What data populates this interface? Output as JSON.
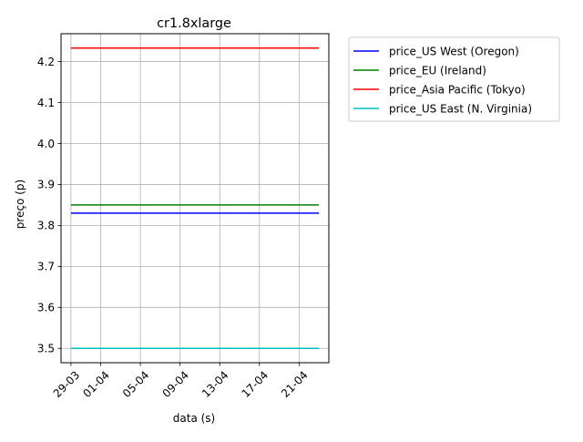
{
  "chart_data": {
    "type": "line",
    "title": "cr1.8xlarge",
    "xlabel": "data (s)",
    "ylabel": "preço (p)",
    "x_dates": [
      "2016-03-29",
      "2016-03-30",
      "2016-03-31",
      "2016-04-01",
      "2016-04-02",
      "2016-04-03",
      "2016-04-04",
      "2016-04-05",
      "2016-04-06",
      "2016-04-07",
      "2016-04-08",
      "2016-04-09",
      "2016-04-10",
      "2016-04-11",
      "2016-04-12",
      "2016-04-13",
      "2016-04-14",
      "2016-04-15",
      "2016-04-16",
      "2016-04-17",
      "2016-04-18",
      "2016-04-19",
      "2016-04-20",
      "2016-04-21",
      "2016-04-22",
      "2016-04-23"
    ],
    "xlim": [
      "2016-03-28",
      "2016-04-24"
    ],
    "x_ticks": [
      {
        "date": "2016-03-29",
        "label": "29-03"
      },
      {
        "date": "2016-04-01",
        "label": "01-04"
      },
      {
        "date": "2016-04-05",
        "label": "05-04"
      },
      {
        "date": "2016-04-09",
        "label": "09-04"
      },
      {
        "date": "2016-04-13",
        "label": "13-04"
      },
      {
        "date": "2016-04-17",
        "label": "17-04"
      },
      {
        "date": "2016-04-21",
        "label": "21-04"
      }
    ],
    "ylim": [
      3.465,
      4.268
    ],
    "y_ticks": [
      3.5,
      3.6,
      3.7,
      3.8,
      3.9,
      4.0,
      4.1,
      4.2
    ],
    "y_tick_labels": [
      "3.5",
      "3.6",
      "3.7",
      "3.8",
      "3.9",
      "4.0",
      "4.1",
      "4.2"
    ],
    "grid": true,
    "legend_position": "outside right, top",
    "series": [
      {
        "name": "price_US West (Oregon)",
        "color": "#0000ff",
        "values": [
          3.83,
          3.83,
          3.83,
          3.83,
          3.83,
          3.83,
          3.83,
          3.83,
          3.83,
          3.83,
          3.83,
          3.83,
          3.83,
          3.83,
          3.83,
          3.83,
          3.83,
          3.83,
          3.83,
          3.83,
          3.83,
          3.83,
          3.83,
          3.83,
          3.83,
          3.83
        ]
      },
      {
        "name": "price_EU (Ireland)",
        "color": "#008000",
        "values": [
          3.85,
          3.85,
          3.85,
          3.85,
          3.85,
          3.85,
          3.85,
          3.85,
          3.85,
          3.85,
          3.85,
          3.85,
          3.85,
          3.85,
          3.85,
          3.85,
          3.85,
          3.85,
          3.85,
          3.85,
          3.85,
          3.85,
          3.85,
          3.85,
          3.85,
          3.85
        ]
      },
      {
        "name": "price_Asia Pacific (Tokyo)",
        "color": "#ff0000",
        "values": [
          4.233,
          4.233,
          4.233,
          4.233,
          4.233,
          4.233,
          4.233,
          4.233,
          4.233,
          4.233,
          4.233,
          4.233,
          4.233,
          4.233,
          4.233,
          4.233,
          4.233,
          4.233,
          4.233,
          4.233,
          4.233,
          4.233,
          4.233,
          4.233,
          4.233,
          4.233
        ]
      },
      {
        "name": "price_US East (N. Virginia)",
        "color": "#00bfbf",
        "values": [
          3.5,
          3.5,
          3.5,
          3.5,
          3.5,
          3.5,
          3.5,
          3.5,
          3.5,
          3.5,
          3.5,
          3.5,
          3.5,
          3.5,
          3.5,
          3.5,
          3.5,
          3.5,
          3.5,
          3.5,
          3.5,
          3.5,
          3.5,
          3.5,
          3.5,
          3.5
        ]
      }
    ]
  }
}
